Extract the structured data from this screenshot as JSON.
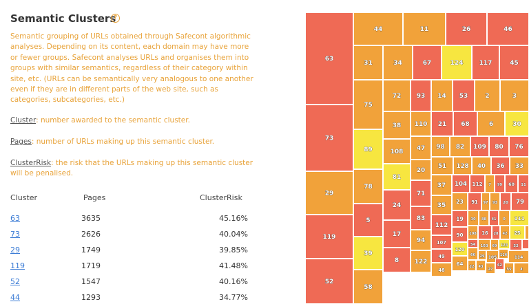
{
  "title": "Semantic Clusters",
  "help_icon": "question-circle-icon",
  "description": "Semantic grouping of URLs obtained through Safecont algorithmic analyses. Depending on its content, each domain may have more or fewer groups. Safecont analyses URLs and organises them into groups with similar semantics, regardless of their category within site, etc. (URLs can be semantically very analogous to one another even if they are in different parts of the web site, such as categories, subcategories, etc.)",
  "definitions": [
    {
      "term": "Cluster",
      "text": ": number awarded to the semantic cluster."
    },
    {
      "term": "Pages",
      "text": ": number of URLs making up this semantic cluster."
    },
    {
      "term": "ClusterRisk",
      "text": ": the risk that the URLs making up this semantic cluster will be penalised."
    }
  ],
  "table": {
    "headers": [
      "Cluster",
      "Pages",
      "ClusterRisk"
    ],
    "rows": [
      {
        "cluster": "63",
        "pages": "3635",
        "risk": "45.16%"
      },
      {
        "cluster": "73",
        "pages": "2626",
        "risk": "40.04%"
      },
      {
        "cluster": "29",
        "pages": "1749",
        "risk": "39.85%"
      },
      {
        "cluster": "119",
        "pages": "1719",
        "risk": "41.48%"
      },
      {
        "cluster": "52",
        "pages": "1547",
        "risk": "40.16%"
      },
      {
        "cluster": "44",
        "pages": "1293",
        "risk": "34.77%"
      }
    ]
  },
  "colors": {
    "red": "#ef6a55",
    "orange": "#f1a23a",
    "yellow": "#f7e640",
    "accent": "#e8a33a",
    "link": "#3a7bd5"
  },
  "treemap": [
    {
      "label": "63",
      "color": "red"
    },
    {
      "label": "73",
      "color": "red"
    },
    {
      "label": "29",
      "color": "orange"
    },
    {
      "label": "119",
      "color": "red"
    },
    {
      "label": "52",
      "color": "red"
    },
    {
      "label": "44",
      "color": "orange"
    },
    {
      "label": "11",
      "color": "orange"
    },
    {
      "label": "26",
      "color": "red"
    },
    {
      "label": "46",
      "color": "red"
    },
    {
      "label": "31",
      "color": "orange"
    },
    {
      "label": "34",
      "color": "orange"
    },
    {
      "label": "67",
      "color": "red"
    },
    {
      "label": "124",
      "color": "yellow"
    },
    {
      "label": "117",
      "color": "red"
    },
    {
      "label": "45",
      "color": "red"
    },
    {
      "label": "72",
      "color": "orange"
    },
    {
      "label": "93",
      "color": "red"
    },
    {
      "label": "14",
      "color": "orange"
    },
    {
      "label": "53",
      "color": "red"
    },
    {
      "label": "2",
      "color": "orange"
    },
    {
      "label": "3",
      "color": "orange"
    },
    {
      "label": "75",
      "color": "orange"
    },
    {
      "label": "110",
      "color": "orange"
    },
    {
      "label": "21",
      "color": "red"
    },
    {
      "label": "68",
      "color": "red"
    },
    {
      "label": "6",
      "color": "orange"
    },
    {
      "label": "30",
      "color": "yellow"
    },
    {
      "label": "38",
      "color": "orange"
    },
    {
      "label": "89",
      "color": "yellow"
    },
    {
      "label": "108",
      "color": "orange"
    },
    {
      "label": "47",
      "color": "orange"
    },
    {
      "label": "98",
      "color": "orange"
    },
    {
      "label": "82",
      "color": "orange"
    },
    {
      "label": "109",
      "color": "red"
    },
    {
      "label": "80",
      "color": "red"
    },
    {
      "label": "76",
      "color": "red"
    },
    {
      "label": "51",
      "color": "orange"
    },
    {
      "label": "128",
      "color": "orange"
    },
    {
      "label": "40",
      "color": "orange"
    },
    {
      "label": "36",
      "color": "red"
    },
    {
      "label": "33",
      "color": "orange"
    },
    {
      "label": "20",
      "color": "orange"
    },
    {
      "label": "78",
      "color": "orange"
    },
    {
      "label": "81",
      "color": "yellow"
    },
    {
      "label": "37",
      "color": "orange"
    },
    {
      "label": "104",
      "color": "red"
    },
    {
      "label": "112",
      "color": "red"
    },
    {
      "label": "7",
      "color": "orange"
    },
    {
      "label": "99",
      "color": "red"
    },
    {
      "label": "60",
      "color": "red"
    },
    {
      "label": "11",
      "color": "red"
    },
    {
      "label": "71",
      "color": "red"
    },
    {
      "label": "24",
      "color": "red"
    },
    {
      "label": "35",
      "color": "orange"
    },
    {
      "label": "23",
      "color": "orange"
    },
    {
      "label": "91",
      "color": "red"
    },
    {
      "label": "97",
      "color": "orange"
    },
    {
      "label": "93",
      "color": "orange"
    },
    {
      "label": "20",
      "color": "red"
    },
    {
      "label": "79",
      "color": "red"
    },
    {
      "label": "5",
      "color": "red"
    },
    {
      "label": "83",
      "color": "red"
    },
    {
      "label": "112",
      "color": "red"
    },
    {
      "label": "19",
      "color": "red"
    },
    {
      "label": "30",
      "color": "orange"
    },
    {
      "label": "88",
      "color": "orange"
    },
    {
      "label": "41",
      "color": "red"
    },
    {
      "label": "0",
      "color": "orange"
    },
    {
      "label": "111",
      "color": "yellow"
    },
    {
      "label": "90",
      "color": "red"
    },
    {
      "label": "108",
      "color": "orange"
    },
    {
      "label": "16",
      "color": "red"
    },
    {
      "label": "28",
      "color": "red"
    },
    {
      "label": "42",
      "color": "orange"
    },
    {
      "label": "25",
      "color": "yellow"
    },
    {
      "label": "70",
      "color": "orange"
    },
    {
      "label": "17",
      "color": "red"
    },
    {
      "label": "94",
      "color": "orange"
    },
    {
      "label": "107",
      "color": "red"
    },
    {
      "label": "120",
      "color": "yellow"
    },
    {
      "label": "54",
      "color": "red"
    },
    {
      "label": "103",
      "color": "orange"
    },
    {
      "label": "69",
      "color": "orange"
    },
    {
      "label": "123",
      "color": "yellow"
    },
    {
      "label": "32",
      "color": "red"
    },
    {
      "label": "18",
      "color": "red"
    },
    {
      "label": "39",
      "color": "yellow"
    },
    {
      "label": "122",
      "color": "orange"
    },
    {
      "label": "49",
      "color": "red"
    },
    {
      "label": "64",
      "color": "orange"
    },
    {
      "label": "66",
      "color": "orange"
    },
    {
      "label": "29",
      "color": "orange"
    },
    {
      "label": "105",
      "color": "orange"
    },
    {
      "label": "116",
      "color": "orange"
    },
    {
      "label": "114",
      "color": "orange"
    },
    {
      "label": "8",
      "color": "red"
    },
    {
      "label": "48",
      "color": "orange"
    },
    {
      "label": "22",
      "color": "orange"
    },
    {
      "label": "43",
      "color": "orange"
    },
    {
      "label": "27",
      "color": "orange"
    },
    {
      "label": "62",
      "color": "red"
    },
    {
      "label": "55",
      "color": "orange"
    },
    {
      "label": "4",
      "color": "orange"
    },
    {
      "label": "58",
      "color": "orange"
    }
  ]
}
